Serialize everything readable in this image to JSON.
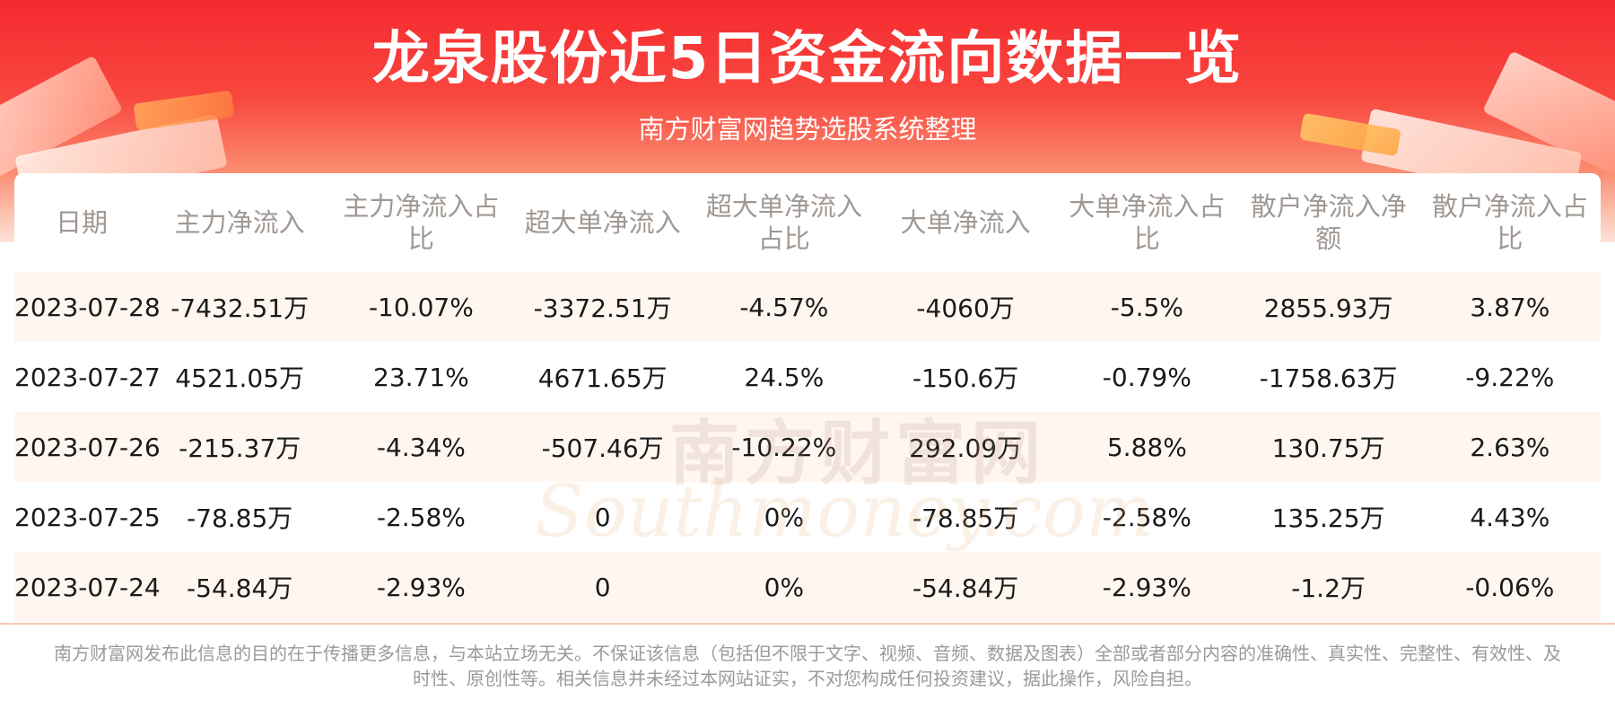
{
  "header": {
    "title": "龙泉股份近5日资金流向数据一览",
    "subtitle": "南方财富网趋势选股系统整理"
  },
  "watermark": {
    "cn": "南方财富网",
    "en": "Southmoney.com"
  },
  "table": {
    "columns": [
      "日期",
      "主力净流入",
      "主力净流入占比",
      "超大单净流入",
      "超大单净流入占比",
      "大单净流入",
      "大单净流入占比",
      "散户净流入净额",
      "散户净流入占比"
    ],
    "rows": [
      [
        "2023-07-28",
        "-7432.51万",
        "-10.07%",
        "-3372.51万",
        "-4.57%",
        "-4060万",
        "-5.5%",
        "2855.93万",
        "3.87%"
      ],
      [
        "2023-07-27",
        "4521.05万",
        "23.71%",
        "4671.65万",
        "24.5%",
        "-150.6万",
        "-0.79%",
        "-1758.63万",
        "-9.22%"
      ],
      [
        "2023-07-26",
        "-215.37万",
        "-4.34%",
        "-507.46万",
        "-10.22%",
        "292.09万",
        "5.88%",
        "130.75万",
        "2.63%"
      ],
      [
        "2023-07-25",
        "-78.85万",
        "-2.58%",
        "0",
        "0%",
        "-78.85万",
        "-2.58%",
        "135.25万",
        "4.43%"
      ],
      [
        "2023-07-24",
        "-54.84万",
        "-2.93%",
        "0",
        "0%",
        "-54.84万",
        "-2.93%",
        "-1.2万",
        "-0.06%"
      ]
    ]
  },
  "footer": {
    "disclaimer": "南方财富网发布此信息的目的在于传播更多信息，与本站立场无关。不保证该信息（包括但不限于文字、视频、音频、数据及图表）全部或者部分内容的准确性、真实性、完整性、有效性、及时性、原创性等。相关信息并未经过本网站证实，不对您构成任何投资建议，据此操作，风险自担。"
  },
  "colors": {
    "banner_red": "#f52a2f",
    "row_stripe": "#fef6ef",
    "header_text": "#a09893"
  }
}
